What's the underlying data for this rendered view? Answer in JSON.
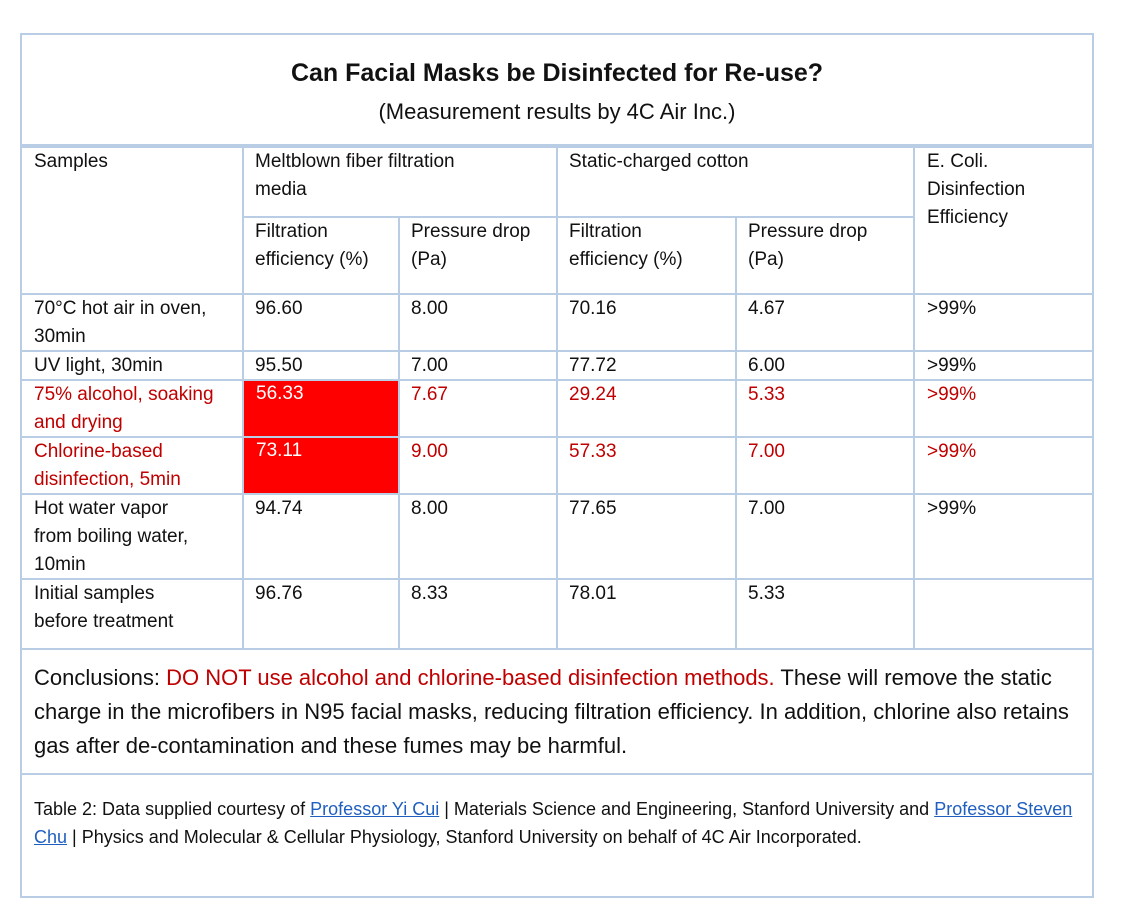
{
  "header": {
    "title": "Can Facial Masks be Disinfected for Re-use?",
    "subtitle": "(Measurement results by 4C Air Inc.)"
  },
  "table": {
    "col_samples": "Samples",
    "group_meltblown": "Meltblown fiber filtration\nmedia",
    "group_cotton": "Static-charged cotton",
    "col_ecoli": "E. Coli.\nDisinfection\nEfficiency",
    "sub_filtration": "Filtration\nefficiency (%)",
    "sub_pressure": "Pressure drop\n(Pa)",
    "rows": [
      {
        "sample": "70°C hot air in oven,\n30min",
        "mb_eff": "96.60",
        "mb_pd": "8.00",
        "ct_eff": "70.16",
        "ct_pd": "4.67",
        "ecoli": ">99%"
      },
      {
        "sample": "UV light, 30min",
        "mb_eff": "95.50",
        "mb_pd": "7.00",
        "ct_eff": "77.72",
        "ct_pd": "6.00",
        "ecoli": ">99%"
      },
      {
        "sample": "75% alcohol, soaking\nand drying",
        "mb_eff": "56.33",
        "mb_pd": "7.67",
        "ct_eff": "29.24",
        "ct_pd": "5.33",
        "ecoli": ">99%"
      },
      {
        "sample": "Chlorine-based\ndisinfection, 5min",
        "mb_eff": "73.11",
        "mb_pd": "9.00",
        "ct_eff": "57.33",
        "ct_pd": "7.00",
        "ecoli": ">99%"
      },
      {
        "sample": "Hot water vapor\nfrom boiling water,\n10min",
        "mb_eff": "94.74",
        "mb_pd": "8.00",
        "ct_eff": "77.65",
        "ct_pd": "7.00",
        "ecoli": ">99%"
      },
      {
        "sample": "Initial samples\nbefore treatment",
        "mb_eff": "96.76",
        "mb_pd": "8.33",
        "ct_eff": "78.01",
        "ct_pd": "5.33",
        "ecoli": ""
      }
    ]
  },
  "conclusion": {
    "lead": "Conclusions: ",
    "warning": "DO NOT use alcohol and chlorine-based disinfection methods.",
    "rest": " These will remove the static charge in the microfibers in N95 facial masks, reducing filtration efficiency. In addition, chlorine also retains gas after de-contamination and these fumes may be harmful."
  },
  "footnote": {
    "part1": "Table 2:  Data supplied courtesy of ",
    "link1": "Professor Yi Cui",
    "part2": " | Materials Science and Engineering, Stanford University and ",
    "link2": "Professor Steven Chu",
    "part3": " | Physics and Molecular & Cellular Physiology, Stanford University on behalf of 4C Air Incorporated."
  },
  "colors": {
    "border": "#b9cde4",
    "warning_text": "#c00000",
    "highlight_fill": "#ff0000",
    "link": "#1f5fbf"
  }
}
